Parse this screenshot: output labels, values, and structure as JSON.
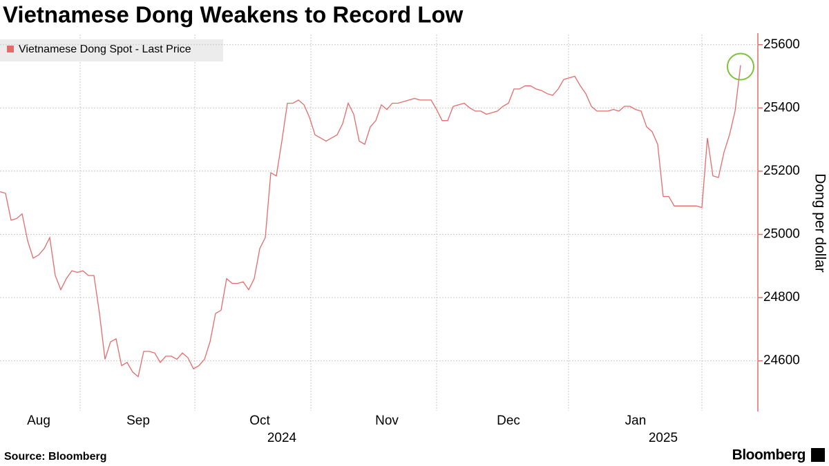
{
  "chart_data": {
    "type": "line",
    "title": "Vietnamese Dong Weakens to Record Low",
    "y_label": "Dong per dollar",
    "source": "Source: Bloomberg",
    "brand": "Bloomberg",
    "legend": "top-left",
    "grid": true,
    "ylim": [
      24440,
      25630
    ],
    "yticks": [
      24600,
      24800,
      25000,
      25200,
      25400,
      25600
    ],
    "categories": [
      null,
      null,
      null,
      null,
      null,
      null,
      null,
      "Aug",
      null,
      null,
      null,
      null,
      null,
      null,
      null,
      null,
      null,
      null,
      null,
      null,
      null,
      null,
      null,
      null,
      null,
      "Sep",
      null,
      null,
      null,
      null,
      null,
      null,
      null,
      null,
      null,
      null,
      null,
      null,
      null,
      null,
      null,
      null,
      null,
      null,
      null,
      null,
      null,
      "Oct",
      null,
      null,
      null,
      null,
      null,
      null,
      null,
      null,
      null,
      null,
      null,
      null,
      null,
      null,
      null,
      null,
      null,
      null,
      null,
      null,
      null,
      null,
      "Nov",
      null,
      null,
      null,
      null,
      null,
      null,
      null,
      null,
      null,
      null,
      null,
      null,
      null,
      null,
      null,
      null,
      null,
      null,
      null,
      null,
      null,
      "Dec",
      null,
      null,
      null,
      null,
      null,
      null,
      null,
      null,
      null,
      null,
      null,
      null,
      null,
      null,
      null,
      null,
      null,
      null,
      null,
      null,
      null,
      null,
      "Jan",
      null,
      null,
      null,
      null,
      null,
      null,
      null,
      null,
      null,
      null,
      null,
      null,
      null,
      null,
      null,
      null,
      null,
      null,
      null
    ],
    "category_years": [
      null,
      null,
      null,
      null,
      null,
      null,
      null,
      null,
      null,
      null,
      null,
      null,
      null,
      null,
      null,
      null,
      null,
      null,
      null,
      null,
      null,
      null,
      null,
      null,
      null,
      null,
      null,
      null,
      null,
      null,
      null,
      null,
      null,
      null,
      null,
      null,
      null,
      null,
      null,
      null,
      null,
      null,
      null,
      null,
      null,
      null,
      null,
      null,
      null,
      null,
      null,
      "2024",
      null,
      null,
      null,
      null,
      null,
      null,
      null,
      null,
      null,
      null,
      null,
      null,
      null,
      null,
      null,
      null,
      null,
      null,
      null,
      null,
      null,
      null,
      null,
      null,
      null,
      null,
      null,
      null,
      null,
      null,
      null,
      null,
      null,
      null,
      null,
      null,
      null,
      null,
      null,
      null,
      null,
      null,
      null,
      null,
      null,
      null,
      null,
      null,
      null,
      null,
      null,
      null,
      null,
      null,
      null,
      null,
      null,
      null,
      null,
      null,
      null,
      null,
      null,
      null,
      null,
      null,
      null,
      null,
      "2025",
      null,
      null,
      null,
      null,
      null,
      null,
      null,
      null,
      null,
      null,
      null,
      null,
      null,
      null
    ],
    "series": [
      {
        "name": "Vietnamese Dong Spot - Last Price",
        "color": "#e66a6a",
        "values": [
          25135,
          25130,
          25045,
          25050,
          25065,
          24980,
          24925,
          24935,
          24955,
          24990,
          24870,
          24825,
          24860,
          24885,
          24880,
          24885,
          24870,
          24870,
          24750,
          24605,
          24660,
          24670,
          24585,
          24595,
          24565,
          24550,
          24630,
          24630,
          24625,
          24595,
          24615,
          24615,
          24605,
          24625,
          24610,
          24575,
          24585,
          24605,
          24660,
          24750,
          24760,
          24860,
          24845,
          24845,
          24850,
          24825,
          24860,
          24955,
          24990,
          25195,
          25185,
          25295,
          25415,
          25415,
          25425,
          25410,
          25370,
          25315,
          25305,
          25295,
          25305,
          25315,
          25350,
          25415,
          25380,
          25295,
          25285,
          25340,
          25360,
          25410,
          25395,
          25415,
          25415,
          25420,
          25425,
          25430,
          25425,
          25425,
          25425,
          25395,
          25360,
          25360,
          25405,
          25410,
          25415,
          25400,
          25390,
          25390,
          25380,
          25385,
          25390,
          25405,
          25415,
          25460,
          25460,
          25470,
          25470,
          25460,
          25455,
          25445,
          25440,
          25460,
          25490,
          25495,
          25500,
          25470,
          25445,
          25405,
          25390,
          25390,
          25390,
          25395,
          25390,
          25405,
          25405,
          25395,
          25390,
          25340,
          25325,
          25285,
          25120,
          25120,
          25090,
          25090,
          25090,
          25090,
          25090,
          25085,
          25305,
          25185,
          25180,
          25260,
          25315,
          25390,
          25535
        ]
      }
    ]
  }
}
